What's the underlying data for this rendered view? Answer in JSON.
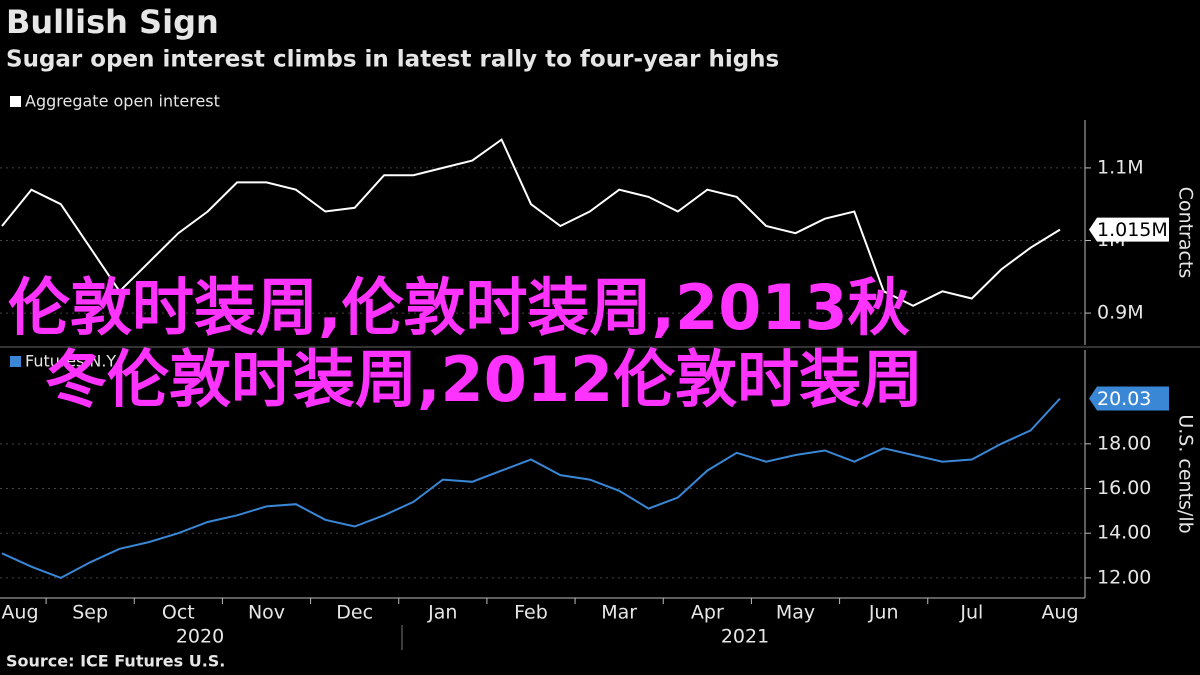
{
  "title": "Bullish Sign",
  "subtitle": "Sugar open interest climbs in latest rally to four-year highs",
  "source": "Source: ICE Futures U.S.",
  "overlay_lines": [
    "伦敦时装周,伦敦时装周,2013秋",
    "冬伦敦时装周,2012伦敦时装周"
  ],
  "x_groups": [
    "2020",
    "2021"
  ],
  "chart_data": [
    {
      "type": "line",
      "categories": [
        "Aug",
        null,
        null,
        "Sep",
        null,
        null,
        "Oct",
        null,
        null,
        "Nov",
        null,
        null,
        "Dec",
        null,
        null,
        "Jan",
        null,
        null,
        "Feb",
        null,
        null,
        "Mar",
        null,
        null,
        "Apr",
        null,
        null,
        "May",
        null,
        null,
        "Jun",
        null,
        null,
        "Jul",
        null,
        null,
        "Aug"
      ],
      "series": [
        {
          "name": "Aggregate open interest",
          "color": "#ffffff",
          "end_label": "1.015M",
          "values": [
            1020000,
            1070000,
            1050000,
            990000,
            930000,
            970000,
            1010000,
            1040000,
            1080000,
            1080000,
            1070000,
            1040000,
            1045000,
            1090000,
            1090000,
            1100000,
            1110000,
            1139000,
            1050000,
            1020000,
            1040000,
            1070000,
            1060000,
            1040000,
            1070000,
            1060000,
            1020000,
            1010000,
            1030000,
            1040000,
            930000,
            910000,
            930000,
            920000,
            960000,
            990000,
            1015000
          ]
        }
      ],
      "ylim": [
        856000,
        1166000
      ],
      "yticks": [
        {
          "value": 900000,
          "label": "0.9M"
        },
        {
          "value": 1000000,
          "label": "1M"
        },
        {
          "value": 1100000,
          "label": "1.1M"
        }
      ],
      "y_label": "Contracts",
      "grid": true
    },
    {
      "type": "line",
      "categories": [
        "Aug",
        null,
        null,
        "Sep",
        null,
        null,
        "Oct",
        null,
        null,
        "Nov",
        null,
        null,
        "Dec",
        null,
        null,
        "Jan",
        null,
        null,
        "Feb",
        null,
        null,
        "Mar",
        null,
        null,
        "Apr",
        null,
        null,
        "May",
        null,
        null,
        "Jun",
        null,
        null,
        "Jul",
        null,
        null,
        "Aug"
      ],
      "series": [
        {
          "name": "Futures N.Y",
          "color": "#3a87d6",
          "values": [
            13.1,
            12.5,
            12.0,
            12.7,
            13.3,
            13.6,
            14.0,
            14.5,
            14.8,
            15.2,
            15.3,
            14.6,
            14.3,
            14.8,
            15.4,
            16.4,
            16.3,
            16.8,
            17.3,
            16.6,
            16.4,
            15.9,
            15.1,
            15.6,
            16.8,
            17.6,
            17.2,
            17.5,
            17.7,
            17.2,
            17.8,
            17.5,
            17.2,
            17.3,
            18.0,
            18.6,
            20.03
          ]
        }
      ],
      "ylim": [
        11.1,
        22.2
      ],
      "yticks": [
        {
          "value": 12,
          "label": "12.00"
        },
        {
          "value": 14,
          "label": "14.00"
        },
        {
          "value": 16,
          "label": "16.00"
        },
        {
          "value": 18,
          "label": "18.00"
        }
      ],
      "y_label": "U.S. cents/lb",
      "grid": true
    }
  ]
}
